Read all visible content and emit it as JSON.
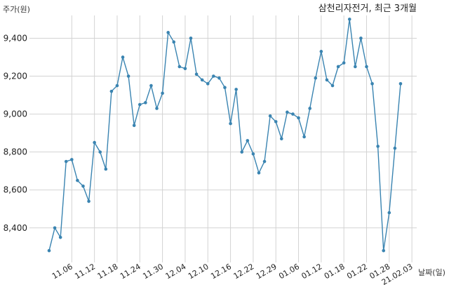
{
  "chart_data": {
    "type": "line",
    "title": "삼천리자전거, 최근 3개월",
    "ylabel": "주가(원)",
    "xlabel": "날짜(일)",
    "ylim": [
      8240,
      9520
    ],
    "yticks": [
      "8,400",
      "8,600",
      "8,800",
      "9,000",
      "9,200",
      "9,400"
    ],
    "ytick_values": [
      8400,
      8600,
      8800,
      9000,
      9200,
      9400
    ],
    "xticks": [
      "11.06",
      "11.12",
      "11.18",
      "11.24",
      "11.30",
      "12.04",
      "12.10",
      "12.16",
      "12.22",
      "12.29",
      "01.06",
      "01.12",
      "01.18",
      "01.22",
      "01.28",
      "21.02.03"
    ],
    "xtick_positions": [
      4,
      8,
      12,
      16,
      20,
      24,
      28,
      32,
      36,
      40,
      44,
      48,
      52,
      56,
      60,
      64
    ],
    "grid": true,
    "legend": "none",
    "line_color": "#3a84b1",
    "series": [
      {
        "values": [
          8280,
          8400,
          8350,
          8750,
          8760,
          8650,
          8620,
          8540,
          8850,
          8800,
          8710,
          9120,
          9150,
          9300,
          9200,
          8940,
          9050,
          9060,
          9150,
          9030,
          9110,
          9430,
          9380,
          9250,
          9240,
          9400,
          9210,
          9180,
          9160,
          9200,
          9190,
          9140,
          8950,
          9130,
          8800,
          8860,
          8790,
          8690,
          8750,
          8990,
          8960,
          8870,
          9010,
          9000,
          8980,
          8880,
          9030,
          9190,
          9330,
          9180,
          9150,
          9250,
          9270,
          9500,
          9250,
          9400,
          9250,
          9160,
          8830,
          8280,
          8480,
          8820,
          9160
        ]
      }
    ]
  }
}
